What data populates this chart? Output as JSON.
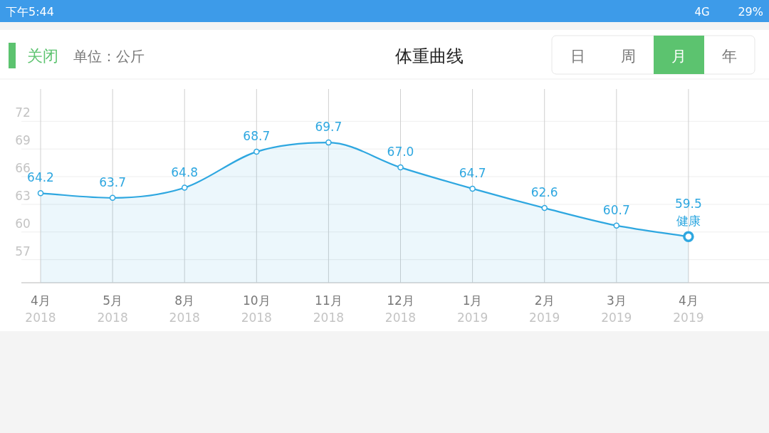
{
  "chart_data": {
    "type": "area",
    "title": "体重曲线",
    "subtitle": "单位：公斤",
    "categories": [
      "4月\n2018",
      "5月\n2018",
      "8月\n2018",
      "10月\n2018",
      "11月\n2018",
      "12月\n2018",
      "1月\n2019",
      "2月\n2019",
      "3月\n2019",
      "4月\n2019"
    ],
    "series": [
      {
        "color": "#2ea7e0",
        "values": [
          64.2,
          63.7,
          64.8,
          68.7,
          69.7,
          67.0,
          64.7,
          62.6,
          60.7,
          59.5
        ],
        "value_labels": [
          "64.2",
          "63.7",
          "64.8",
          "68.7",
          "69.7",
          "67.0",
          "64.7",
          "62.6",
          "60.7",
          "59.5"
        ]
      }
    ],
    "ylim": [
      54.5,
      75.5
    ],
    "yticks": [
      57,
      60,
      63,
      66,
      69,
      72
    ],
    "grid": true,
    "marker": "circle",
    "annotations": [
      {
        "text": "健康",
        "x": "4月\n2019",
        "y": 59.5
      },
      "关闭",
      "日",
      "周",
      "月",
      "年",
      "下午5:44",
      "4G",
      "29%"
    ]
  }
}
